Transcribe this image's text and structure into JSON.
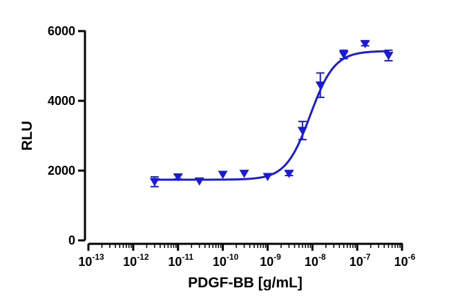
{
  "chart_data": {
    "type": "scatter",
    "title": "",
    "xlabel": "PDGF-BB [g/mL]",
    "ylabel": "RLU",
    "x_scale": "log",
    "xlim": [
      1e-13,
      1e-06
    ],
    "ylim": [
      0,
      6000
    ],
    "x_ticks": [
      {
        "base": "10",
        "exp": "-13",
        "value": 1e-13
      },
      {
        "base": "10",
        "exp": "-12",
        "value": 1e-12
      },
      {
        "base": "10",
        "exp": "-11",
        "value": 1e-11
      },
      {
        "base": "10",
        "exp": "-10",
        "value": 1e-10
      },
      {
        "base": "10",
        "exp": "-9",
        "value": 1e-09
      },
      {
        "base": "10",
        "exp": "-8",
        "value": 1e-08
      },
      {
        "base": "10",
        "exp": "-7",
        "value": 1e-07
      },
      {
        "base": "10",
        "exp": "-6",
        "value": 1e-06
      }
    ],
    "y_ticks": [
      {
        "label": "0",
        "value": 0
      },
      {
        "label": "2000",
        "value": 2000
      },
      {
        "label": "4000",
        "value": 4000
      },
      {
        "label": "6000",
        "value": 6000
      }
    ],
    "grid": false,
    "legend": "none",
    "series_color": "#1a1adb",
    "points": [
      {
        "x": 3e-12,
        "y": 1680,
        "err": 140
      },
      {
        "x": 1e-11,
        "y": 1820,
        "err": 60
      },
      {
        "x": 3e-11,
        "y": 1700,
        "err": 0
      },
      {
        "x": 1e-10,
        "y": 1890,
        "err": 0
      },
      {
        "x": 3e-10,
        "y": 1920,
        "err": 0
      },
      {
        "x": 1e-09,
        "y": 1830,
        "err": 0
      },
      {
        "x": 3e-09,
        "y": 1920,
        "err": 60
      },
      {
        "x": 6e-09,
        "y": 3150,
        "err": 260
      },
      {
        "x": 1.5e-08,
        "y": 4450,
        "err": 350
      },
      {
        "x": 5e-08,
        "y": 5330,
        "err": 120
      },
      {
        "x": 1.5e-07,
        "y": 5640,
        "err": 60
      },
      {
        "x": 5e-07,
        "y": 5300,
        "err": 150
      }
    ],
    "fit_curve": {
      "bottom": 1740,
      "top": 5430,
      "log_ec50": -8.05,
      "hill": 1.6,
      "x_start": 3e-12,
      "x_end": 5e-07
    }
  }
}
